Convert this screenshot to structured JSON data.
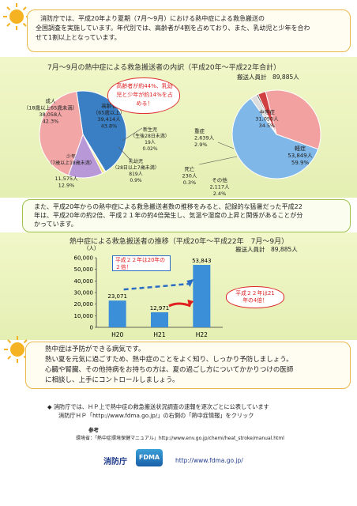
{
  "intro": {
    "line1": "消防庁では、平成20年より夏期（7月～9月）における熱中症による救急搬送の",
    "line2": "全国調査を実施しています。年代別では、高齢者が4割を占めており、また、乳幼児と少年を合わ",
    "line3": "せて1割以上となっています。"
  },
  "pie_section": {
    "title": "7月～9月の熱中症による救急搬送者の内訳（平成20年～平成22年合計）",
    "total_label": "搬送人員計　89,885人",
    "callout": "高齢者が約44%、乳幼児と少年が約14%を占める！",
    "age_chart": {
      "slices": [
        {
          "name": "高齢者",
          "sub": "（65歳以上）",
          "count": "39,414人",
          "pct": "43.8%",
          "color": "#3a7fc4"
        },
        {
          "name": "新生児",
          "sub": "（生後28日未満）",
          "count": "19人",
          "pct": "0.02%",
          "color": "#9acd4a"
        },
        {
          "name": "乳幼児",
          "sub": "（28日以上7歳未満）",
          "count": "819人",
          "pct": "0.9%",
          "color": "#f0e060"
        },
        {
          "name": "少年",
          "sub": "（7歳以上18歳未満）",
          "count": "11,575人",
          "pct": "12.9%",
          "color": "#b898d6"
        },
        {
          "name": "成人",
          "sub": "（18歳以上65歳未満）",
          "count": "38,058人",
          "pct": "42.3%",
          "color": "#f2a6a6"
        }
      ]
    },
    "severity_chart": {
      "slices": [
        {
          "name": "中等症",
          "count": "31,050人",
          "pct": "34.5%",
          "color": "#f2a0a0"
        },
        {
          "name": "軽症",
          "count": "53,849人",
          "pct": "59.9%",
          "color": "#7fb8e8"
        },
        {
          "name": "その他",
          "count": "2,117人",
          "pct": "2.4%",
          "color": "#dddddd"
        },
        {
          "name": "死亡",
          "count": "230人",
          "pct": "0.3%",
          "color": "#555555"
        },
        {
          "name": "重症",
          "count": "2,639人",
          "pct": "2.9%",
          "color": "#d04040"
        }
      ]
    }
  },
  "middle_text": {
    "line1": "また、平成20年からの熱中症による救急搬送者数の推移をみると、記録的な猛暑だった平成22",
    "line2": "年は、平成20年の約2倍、平成２１年の約4倍発生し、気温や湿度の上昇と関係があることが分",
    "line3": "かっています。"
  },
  "chart_data": {
    "type": "bar",
    "title": "熱中症による救急搬送者の推移（平成20年～平成22年　7月～9月）",
    "total_label": "搬送人員計　89,885人",
    "ylabel": "（人）",
    "categories": [
      "H20",
      "H21",
      "H22"
    ],
    "values": [
      23071,
      12971,
      53843
    ],
    "value_labels": [
      "23,071",
      "12,971",
      "53,843"
    ],
    "yticks": [
      "0",
      "10,000",
      "20,000",
      "30,000",
      "40,000",
      "50,000",
      "60,000"
    ],
    "ylim": [
      0,
      60000
    ],
    "callout1": "平成２２年は20年の２倍！",
    "callout2": "平成２２年は21年の4倍！",
    "bar_color": "#3a8fd8"
  },
  "advice": {
    "line1": "熱中症は予防ができる病気です。",
    "line2": "熱い夏を元気に過ごすため、熱中症のことをよく知り、しっかり予防しましょう。",
    "line3": "心臓や腎臓、その他持病をお持ちの方は、夏の過ごし方についてかかりつけの医師",
    "line4": "に相談し、上手にコントロールしましょう。"
  },
  "footer": {
    "note1": "消防庁では、ＨＰ上で熱中症の救急搬送状況調査の速報を逐次ごとに公表しています",
    "note2": "消防庁ＨＰ「http://www.fdma.go.jp/」の右側の「熱中症情報」をクリック",
    "ref_head": "参考",
    "ref_line": "環境省：「熱中症環境保健マニュアル」http://www.env.go.jp/chemi/heat_stroke/manual.html",
    "org": "消防庁",
    "logo": "FDMA",
    "url": "http://www.fdma.go.jp/"
  }
}
